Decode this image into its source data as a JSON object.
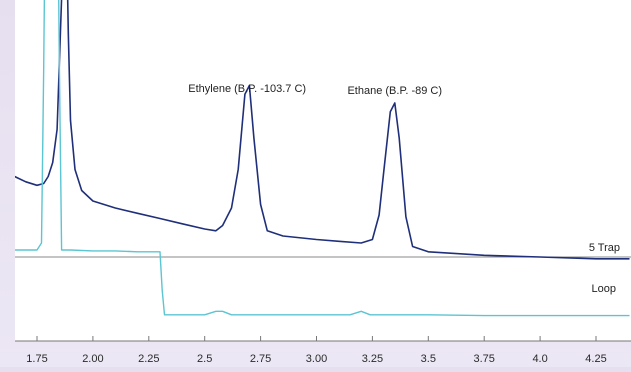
{
  "chart_data": {
    "type": "line",
    "title": "",
    "xlabel": "",
    "ylabel": "",
    "xlim": [
      1.6,
      4.4
    ],
    "grid": false,
    "x_ticks": [
      "1.75",
      "2.00",
      "2.25",
      "2.5",
      "2.75",
      "3.00",
      "3.25",
      "3.5",
      "3.75",
      "4.0",
      "4.25"
    ],
    "x_tick_values": [
      1.75,
      2.0,
      2.25,
      2.5,
      2.75,
      3.0,
      3.25,
      3.5,
      3.75,
      4.0,
      4.25
    ],
    "y_relative_note": "signal in arbitrary detector units (no y axis printed)",
    "series": [
      {
        "name": "5 Trap",
        "color": "#1f2f7a",
        "points": [
          [
            1.6,
            0.62
          ],
          [
            1.65,
            0.58
          ],
          [
            1.7,
            0.55
          ],
          [
            1.75,
            0.53
          ],
          [
            1.78,
            0.54
          ],
          [
            1.8,
            0.58
          ],
          [
            1.82,
            0.66
          ],
          [
            1.84,
            0.85
          ],
          [
            1.86,
            1.6
          ],
          [
            1.87,
            2.5
          ],
          [
            1.88,
            2.1
          ],
          [
            1.89,
            1.4
          ],
          [
            1.9,
            0.9
          ],
          [
            1.92,
            0.62
          ],
          [
            1.95,
            0.5
          ],
          [
            2.0,
            0.44
          ],
          [
            2.1,
            0.4
          ],
          [
            2.2,
            0.37
          ],
          [
            2.3,
            0.34
          ],
          [
            2.4,
            0.31
          ],
          [
            2.5,
            0.28
          ],
          [
            2.55,
            0.27
          ],
          [
            2.58,
            0.3
          ],
          [
            2.62,
            0.4
          ],
          [
            2.65,
            0.62
          ],
          [
            2.68,
            1.05
          ],
          [
            2.7,
            1.1
          ],
          [
            2.72,
            0.8
          ],
          [
            2.75,
            0.42
          ],
          [
            2.78,
            0.27
          ],
          [
            2.85,
            0.24
          ],
          [
            3.0,
            0.22
          ],
          [
            3.1,
            0.21
          ],
          [
            3.2,
            0.2
          ],
          [
            3.25,
            0.22
          ],
          [
            3.28,
            0.36
          ],
          [
            3.3,
            0.6
          ],
          [
            3.33,
            0.95
          ],
          [
            3.35,
            1.0
          ],
          [
            3.37,
            0.8
          ],
          [
            3.4,
            0.35
          ],
          [
            3.43,
            0.18
          ],
          [
            3.5,
            0.15
          ],
          [
            3.75,
            0.13
          ],
          [
            4.0,
            0.12
          ],
          [
            4.25,
            0.11
          ],
          [
            4.4,
            0.11
          ]
        ]
      },
      {
        "name": "Loop",
        "color": "#5bc5d2",
        "points": [
          [
            1.6,
            0.16
          ],
          [
            1.7,
            0.16
          ],
          [
            1.75,
            0.16
          ],
          [
            1.77,
            0.2
          ],
          [
            1.78,
            1.2
          ],
          [
            1.79,
            2.5
          ],
          [
            1.8,
            2.5
          ],
          [
            1.82,
            2.5
          ],
          [
            1.84,
            2.5
          ],
          [
            1.85,
            1.2
          ],
          [
            1.86,
            0.16
          ],
          [
            1.9,
            0.16
          ],
          [
            2.0,
            0.155
          ],
          [
            2.1,
            0.155
          ],
          [
            2.2,
            0.15
          ],
          [
            2.3,
            0.15
          ],
          [
            2.31,
            -0.07
          ],
          [
            2.32,
            -0.21
          ],
          [
            2.4,
            -0.21
          ],
          [
            2.5,
            -0.21
          ],
          [
            2.55,
            -0.19
          ],
          [
            2.58,
            -0.19
          ],
          [
            2.62,
            -0.21
          ],
          [
            2.8,
            -0.21
          ],
          [
            3.0,
            -0.21
          ],
          [
            3.15,
            -0.21
          ],
          [
            3.2,
            -0.19
          ],
          [
            3.24,
            -0.21
          ],
          [
            3.5,
            -0.21
          ],
          [
            3.75,
            -0.215
          ],
          [
            4.0,
            -0.215
          ],
          [
            4.25,
            -0.215
          ],
          [
            4.4,
            -0.215
          ]
        ]
      }
    ],
    "annotations": [
      {
        "text": "Ethylene (B.P. -103.7 C)",
        "x": 2.69
      },
      {
        "text": "Ethane (B.P. -89 C)",
        "x": 3.35
      }
    ],
    "legend_labels": [
      {
        "text": "5 Trap",
        "position": "right, at baseline of trap trace"
      },
      {
        "text": "Loop",
        "position": "right, above loop trace"
      }
    ],
    "baseline_y": 0.12,
    "colors": {
      "trap": "#1f2f7a",
      "loop": "#5bc5d2",
      "baseline": "#8a8a8a",
      "tick_text": "#2a2a2a",
      "plot_bg": "#ffffff",
      "outer_bg": "#e8e2f1"
    }
  }
}
